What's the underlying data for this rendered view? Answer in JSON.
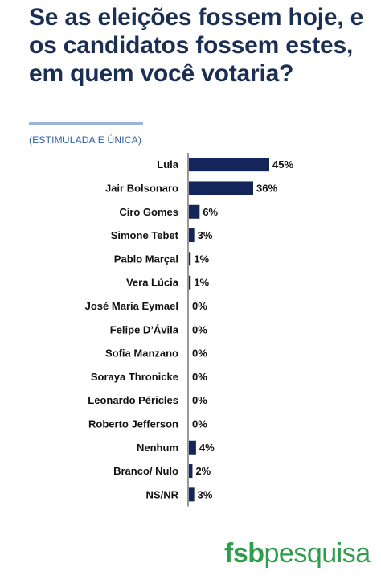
{
  "title": "Se as eleições fossem hoje, e os candidatos fossem estes, em quem você votaria?",
  "subtitle": "(ESTIMULADA E ÚNICA)",
  "logo": {
    "brand": "fsb",
    "rest": "pesquisa"
  },
  "colors": {
    "bar": "#13255b",
    "title": "#1b2f55",
    "subtitle": "#2e5fa6",
    "logo": "#2e9e4b",
    "axis": "#555555"
  },
  "chart_data": {
    "type": "bar",
    "orientation": "horizontal",
    "title": "Se as eleições fossem hoje, e os candidatos fossem estes, em quem você votaria?",
    "subtitle": "(ESTIMULADA E ÚNICA)",
    "categories": [
      "Lula",
      "Jair Bolsonaro",
      "Ciro Gomes",
      "Simone Tebet",
      "Pablo Marçal",
      "Vera Lúcia",
      "José Maria Eymael",
      "Felipe D’Ávila",
      "Sofia Manzano",
      "Soraya Thronicke",
      "Leonardo Péricles",
      "Roberto Jefferson",
      "Nenhum",
      "Branco/ Nulo",
      "NS/NR"
    ],
    "values": [
      45,
      36,
      6,
      3,
      1,
      1,
      0,
      0,
      0,
      0,
      0,
      0,
      4,
      2,
      3
    ],
    "value_labels": [
      "45%",
      "36%",
      "6%",
      "3%",
      "1%",
      "1%",
      "0%",
      "0%",
      "0%",
      "0%",
      "0%",
      "0%",
      "4%",
      "2%",
      "3%"
    ],
    "unit": "%",
    "xlabel": "",
    "ylabel": "",
    "xlim": [
      0,
      45
    ],
    "grid": false,
    "legend": "none"
  }
}
